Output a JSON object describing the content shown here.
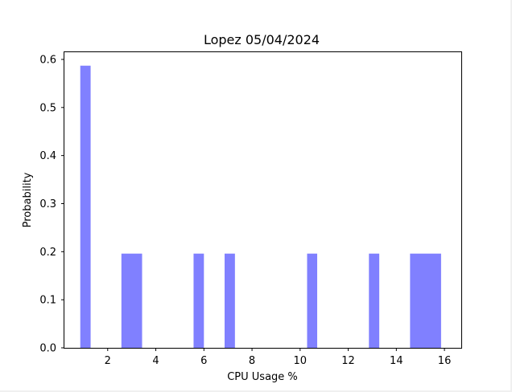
{
  "chart_data": {
    "type": "bar",
    "title": "Lopez 05/04/2024",
    "xlabel": "CPU Usage %",
    "ylabel": "Probability",
    "xlim": [
      0.2,
      16.7
    ],
    "ylim": [
      0,
      0.615
    ],
    "xticks": [
      2,
      4,
      6,
      8,
      10,
      12,
      14,
      16
    ],
    "yticks": [
      0.0,
      0.1,
      0.2,
      0.3,
      0.4,
      0.5,
      0.6
    ],
    "xtick_labels": [
      "2",
      "4",
      "6",
      "8",
      "10",
      "12",
      "14",
      "16"
    ],
    "ytick_labels": [
      "0.0",
      "0.1",
      "0.2",
      "0.3",
      "0.4",
      "0.5",
      "0.6"
    ],
    "bar_color": "#8080ff",
    "grid": false,
    "series": [
      {
        "bins": [
          {
            "start": 0.86,
            "end": 1.29,
            "value": 0.587
          },
          {
            "start": 2.57,
            "end": 3.43,
            "value": 0.196
          },
          {
            "start": 5.57,
            "end": 6.0,
            "value": 0.196
          },
          {
            "start": 6.86,
            "end": 7.29,
            "value": 0.196
          },
          {
            "start": 10.29,
            "end": 10.71,
            "value": 0.196
          },
          {
            "start": 12.86,
            "end": 13.29,
            "value": 0.196
          },
          {
            "start": 14.57,
            "end": 15.86,
            "value": 0.196
          }
        ]
      }
    ]
  }
}
